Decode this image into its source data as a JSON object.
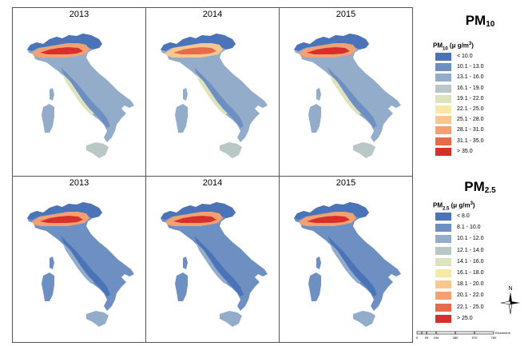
{
  "maps": {
    "top_row": [
      {
        "year": "2013",
        "pollutant": "PM10"
      },
      {
        "year": "2014",
        "pollutant": "PM10"
      },
      {
        "year": "2015",
        "pollutant": "PM10"
      }
    ],
    "bottom_row": [
      {
        "year": "2013",
        "pollutant": "PM2.5"
      },
      {
        "year": "2014",
        "pollutant": "PM2.5"
      },
      {
        "year": "2015",
        "pollutant": "PM2.5"
      }
    ]
  },
  "legend_pm10": {
    "heading": {
      "base": "PM",
      "sub": "10"
    },
    "subheading": {
      "base": "PM",
      "sub": "10",
      "unit_pre": " (μ g/m",
      "unit_sup": "3",
      "unit_post": ")"
    },
    "items": [
      {
        "label": "< 10.0",
        "color": "#4a73b8"
      },
      {
        "label": "10.1 - 13.0",
        "color": "#6d8fc2"
      },
      {
        "label": "13.1 - 16.0",
        "color": "#93acc9"
      },
      {
        "label": "16.1 - 19.0",
        "color": "#b9c8c6"
      },
      {
        "label": "19.1 - 22.0",
        "color": "#dde3bc"
      },
      {
        "label": "22.1 - 25.0",
        "color": "#f7e8a8"
      },
      {
        "label": "25.1 - 28.0",
        "color": "#f8c78e"
      },
      {
        "label": "28.1 - 31.0",
        "color": "#f3a072"
      },
      {
        "label": "31.1 - 35.0",
        "color": "#e66b4d"
      },
      {
        "label": "> 35.0",
        "color": "#d7302a"
      }
    ]
  },
  "legend_pm25": {
    "heading": {
      "base": "PM",
      "sub": "2.5"
    },
    "subheading": {
      "base": "PM",
      "sub": "2.5",
      "unit_pre": " (μ g/m",
      "unit_sup": "3",
      "unit_post": ")"
    },
    "items": [
      {
        "label": "< 8.0",
        "color": "#4a73b8"
      },
      {
        "label": "8.1 - 10.0",
        "color": "#6d8fc2"
      },
      {
        "label": "10.1 - 12.0",
        "color": "#93acc9"
      },
      {
        "label": "12.1 - 14.0",
        "color": "#b9c8c6"
      },
      {
        "label": "14.1 - 16.0",
        "color": "#dde3bc"
      },
      {
        "label": "16.1 - 18.0",
        "color": "#f7e8a8"
      },
      {
        "label": "18.1 - 20.0",
        "color": "#f8c78e"
      },
      {
        "label": "20.1 - 22.0",
        "color": "#f3a072"
      },
      {
        "label": "22.1 - 25.0",
        "color": "#e66b4d"
      },
      {
        "label": "> 25.0",
        "color": "#d7302a"
      }
    ]
  },
  "north_arrow": {
    "label": "N",
    "icon": "north-arrow-icon"
  },
  "scale_bar": {
    "ticks": [
      "0",
      "95",
      "190",
      "380",
      "570",
      "760"
    ],
    "unit": "Kilometers"
  }
}
